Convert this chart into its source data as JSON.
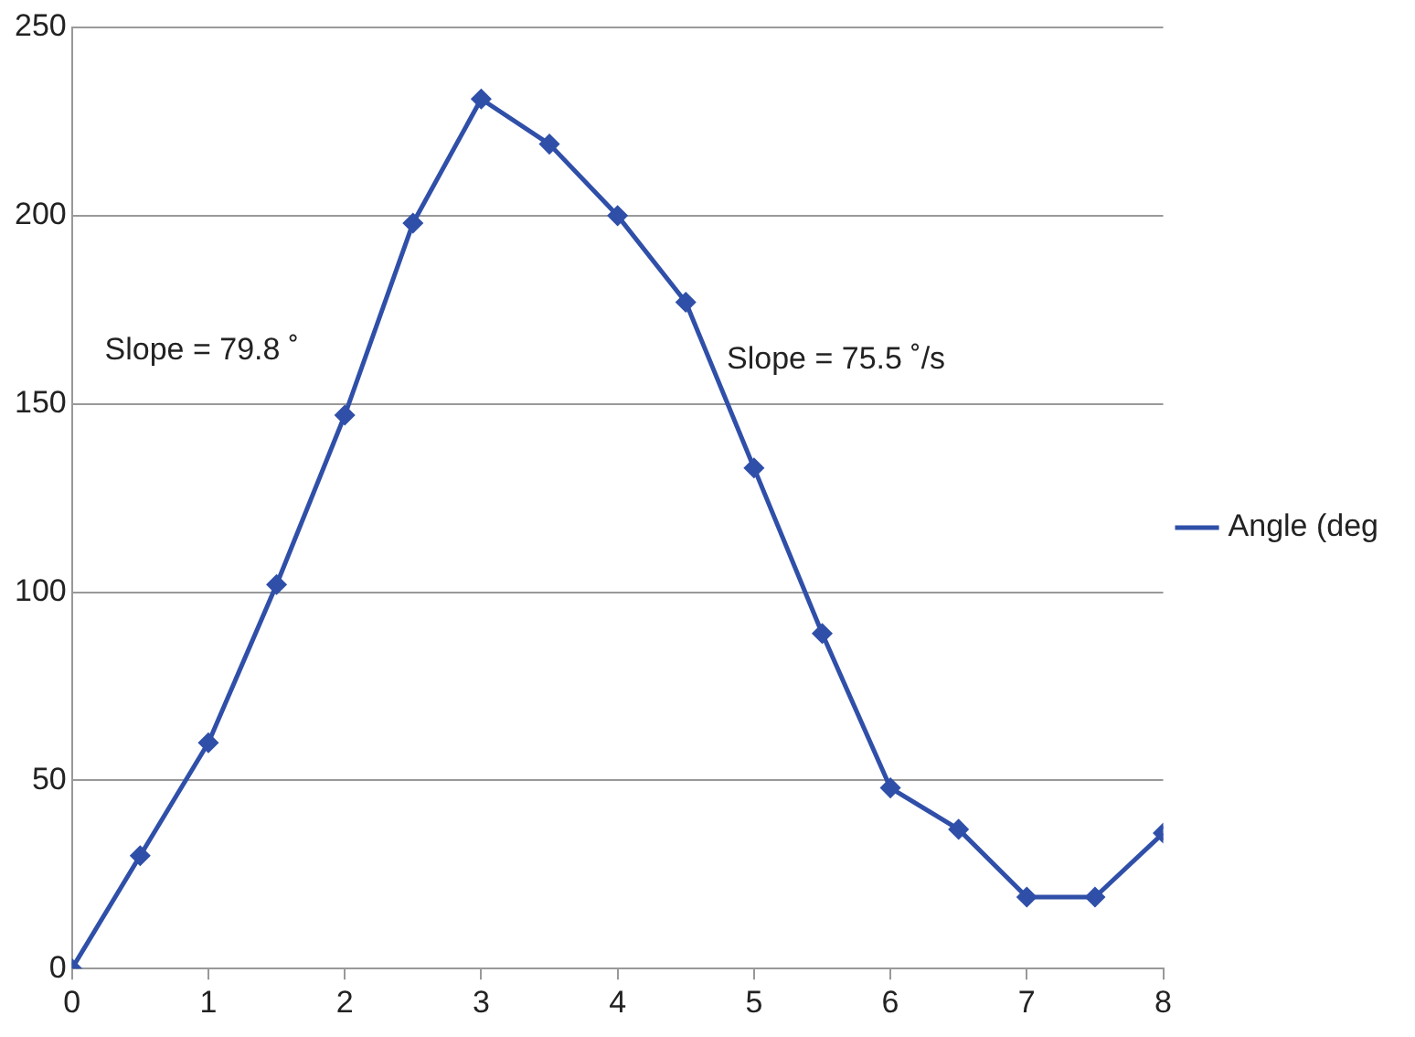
{
  "chart_data": {
    "type": "line",
    "x": [
      0,
      0.5,
      1,
      1.5,
      2,
      2.5,
      3,
      3.5,
      4,
      4.5,
      5,
      5.5,
      6,
      6.5,
      7,
      7.5,
      8
    ],
    "series": [
      {
        "name": "Angle (deg",
        "color": "#2f4fa8",
        "values": [
          0,
          30,
          60,
          102,
          147,
          198,
          231,
          219,
          200,
          177,
          133,
          89,
          48,
          37,
          19,
          19,
          36
        ]
      }
    ],
    "xlim": [
      0,
      8
    ],
    "xticks": [
      0,
      1,
      2,
      3,
      4,
      5,
      6,
      7,
      8
    ],
    "ylim": [
      0,
      250
    ],
    "yticks": [
      0,
      50,
      100,
      150,
      200,
      250
    ],
    "grid": "y",
    "legend": "right",
    "marker": "diamond",
    "line_style": "solid",
    "annotations": [
      "Slope = 79.8 ˚",
      "Slope = 75.5 ˚/s"
    ]
  }
}
